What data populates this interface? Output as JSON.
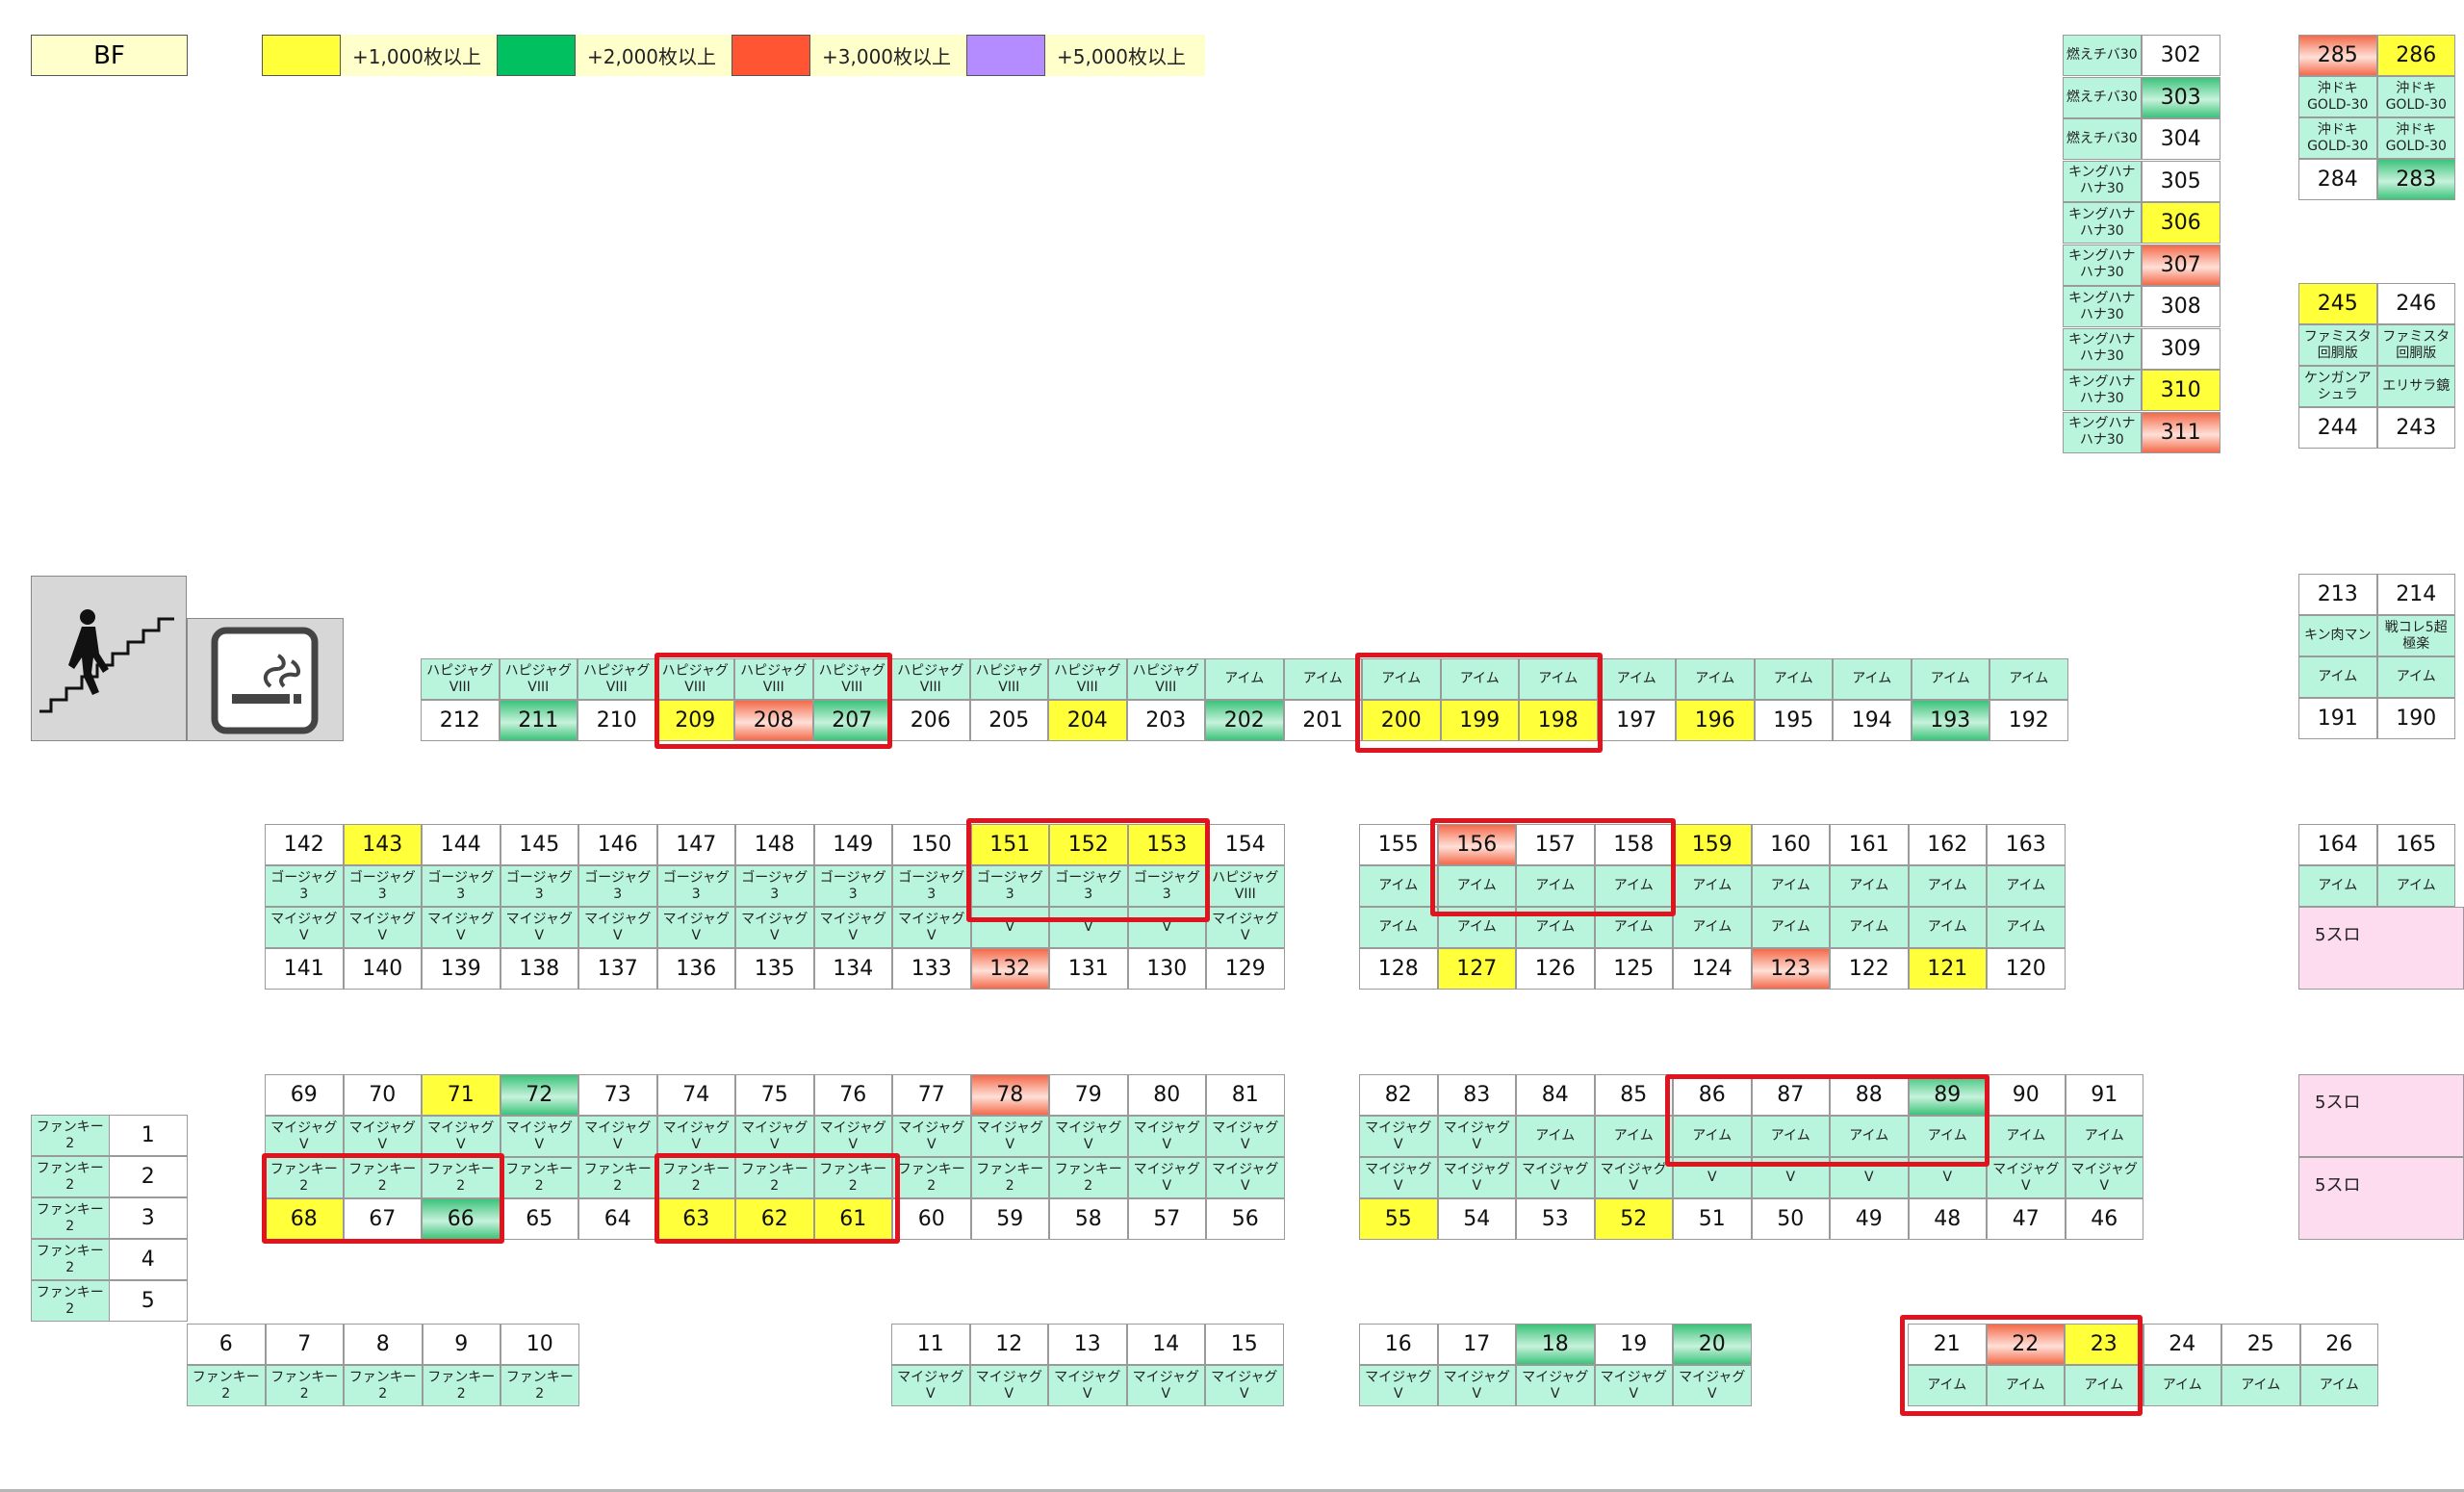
{
  "floor": "BF",
  "legend": [
    {
      "key": "y",
      "label": "+1,000枚以上",
      "color": "#ffff3a"
    },
    {
      "key": "g",
      "label": "+2,000枚以上",
      "color": "#00c060"
    },
    {
      "key": "r",
      "label": "+3,000枚以上",
      "color": "#ff5533"
    },
    {
      "key": "p",
      "label": "+5,000枚以上",
      "color": "#b48cff"
    }
  ],
  "icons": {
    "stairs": "stairs-icon",
    "smoking": "smoking-area-icon"
  },
  "pink_areas": [
    "5スロ",
    "5スロ",
    "5スロ"
  ],
  "units": [
    {
      "n": "302",
      "m": "燃えチバ30",
      "l": "n"
    },
    {
      "n": "303",
      "m": "燃えチバ30",
      "l": "g"
    },
    {
      "n": "304",
      "m": "燃えチバ30",
      "l": "n"
    },
    {
      "n": "305",
      "m": "キングハナ\nハナ30",
      "l": "n"
    },
    {
      "n": "306",
      "m": "キングハナ\nハナ30",
      "l": "y"
    },
    {
      "n": "307",
      "m": "キングハナ\nハナ30",
      "l": "r"
    },
    {
      "n": "308",
      "m": "キングハナ\nハナ30",
      "l": "n"
    },
    {
      "n": "309",
      "m": "キングハナ\nハナ30",
      "l": "n"
    },
    {
      "n": "310",
      "m": "キングハナ\nハナ30",
      "l": "y"
    },
    {
      "n": "311",
      "m": "キングハナ\nハナ30",
      "l": "r"
    },
    {
      "n": "285",
      "m": "沖ドキ\nGOLD-30",
      "l": "r"
    },
    {
      "n": "286",
      "m": "沖ドキ\nGOLD-30",
      "l": "y"
    },
    {
      "n": "284",
      "m": "沖ドキ\nGOLD-30",
      "l": "n"
    },
    {
      "n": "283",
      "m": "沖ドキ\nGOLD-30",
      "l": "g"
    },
    {
      "n": "245",
      "m": "ファミスタ\n回胴版",
      "l": "y"
    },
    {
      "n": "246",
      "m": "ファミスタ\n回胴版",
      "l": "n"
    },
    {
      "n": "244",
      "m": "ケンガンア\nシュラ",
      "l": "n"
    },
    {
      "n": "243",
      "m": "エリサラ鏡",
      "l": "n"
    },
    {
      "n": "213",
      "m": "キン肉マン",
      "l": "n"
    },
    {
      "n": "214",
      "m": "戦コレ5超\n極楽",
      "l": "n"
    },
    {
      "n": "191",
      "m": "アイム",
      "l": "n"
    },
    {
      "n": "190",
      "m": "アイム",
      "l": "n"
    },
    {
      "n": "212",
      "m": "ハピジャグ\nVIII",
      "l": "n"
    },
    {
      "n": "211",
      "m": "ハピジャグ\nVIII",
      "l": "g"
    },
    {
      "n": "210",
      "m": "ハピジャグ\nVIII",
      "l": "n"
    },
    {
      "n": "209",
      "m": "ハピジャグ\nVIII",
      "l": "y"
    },
    {
      "n": "208",
      "m": "ハピジャグ\nVIII",
      "l": "r"
    },
    {
      "n": "207",
      "m": "ハピジャグ\nVIII",
      "l": "g"
    },
    {
      "n": "206",
      "m": "ハピジャグ\nVIII",
      "l": "n"
    },
    {
      "n": "205",
      "m": "ハピジャグ\nVIII",
      "l": "n"
    },
    {
      "n": "204",
      "m": "ハピジャグ\nVIII",
      "l": "y"
    },
    {
      "n": "203",
      "m": "ハピジャグ\nVIII",
      "l": "n"
    },
    {
      "n": "202",
      "m": "アイム",
      "l": "g"
    },
    {
      "n": "201",
      "m": "アイム",
      "l": "n"
    },
    {
      "n": "200",
      "m": "アイム",
      "l": "y"
    },
    {
      "n": "199",
      "m": "アイム",
      "l": "y"
    },
    {
      "n": "198",
      "m": "アイム",
      "l": "y"
    },
    {
      "n": "197",
      "m": "アイム",
      "l": "n"
    },
    {
      "n": "196",
      "m": "アイム",
      "l": "y"
    },
    {
      "n": "195",
      "m": "アイム",
      "l": "n"
    },
    {
      "n": "194",
      "m": "アイム",
      "l": "n"
    },
    {
      "n": "193",
      "m": "アイム",
      "l": "g"
    },
    {
      "n": "192",
      "m": "アイム",
      "l": "n"
    },
    {
      "n": "142",
      "m": "ゴージャグ\n3",
      "l": "n"
    },
    {
      "n": "143",
      "m": "ゴージャグ\n3",
      "l": "y"
    },
    {
      "n": "144",
      "m": "ゴージャグ\n3",
      "l": "n"
    },
    {
      "n": "145",
      "m": "ゴージャグ\n3",
      "l": "n"
    },
    {
      "n": "146",
      "m": "ゴージャグ\n3",
      "l": "n"
    },
    {
      "n": "147",
      "m": "ゴージャグ\n3",
      "l": "n"
    },
    {
      "n": "148",
      "m": "ゴージャグ\n3",
      "l": "n"
    },
    {
      "n": "149",
      "m": "ゴージャグ\n3",
      "l": "n"
    },
    {
      "n": "150",
      "m": "ゴージャグ\n3",
      "l": "n"
    },
    {
      "n": "151",
      "m": "ゴージャグ\n3",
      "l": "y"
    },
    {
      "n": "152",
      "m": "ゴージャグ\n3",
      "l": "y"
    },
    {
      "n": "153",
      "m": "ゴージャグ\n3",
      "l": "y"
    },
    {
      "n": "154",
      "m": "ハピジャグ\nVIII",
      "l": "n"
    },
    {
      "n": "141",
      "m": "マイジャグ\nV",
      "l": "n"
    },
    {
      "n": "140",
      "m": "マイジャグ\nV",
      "l": "n"
    },
    {
      "n": "139",
      "m": "マイジャグ\nV",
      "l": "n"
    },
    {
      "n": "138",
      "m": "マイジャグ\nV",
      "l": "n"
    },
    {
      "n": "137",
      "m": "マイジャグ\nV",
      "l": "n"
    },
    {
      "n": "136",
      "m": "マイジャグ\nV",
      "l": "n"
    },
    {
      "n": "135",
      "m": "マイジャグ\nV",
      "l": "n"
    },
    {
      "n": "134",
      "m": "マイジャグ\nV",
      "l": "n"
    },
    {
      "n": "133",
      "m": "マイジャグ\nV",
      "l": "n"
    },
    {
      "n": "132",
      "m": "V",
      "l": "r"
    },
    {
      "n": "131",
      "m": "V",
      "l": "n"
    },
    {
      "n": "130",
      "m": "V",
      "l": "n"
    },
    {
      "n": "129",
      "m": "マイジャグ\nV",
      "l": "n"
    },
    {
      "n": "155",
      "m": "アイム",
      "l": "n"
    },
    {
      "n": "156",
      "m": "アイム",
      "l": "r"
    },
    {
      "n": "157",
      "m": "アイム",
      "l": "n"
    },
    {
      "n": "158",
      "m": "アイム",
      "l": "n"
    },
    {
      "n": "159",
      "m": "アイム",
      "l": "y"
    },
    {
      "n": "160",
      "m": "アイム",
      "l": "n"
    },
    {
      "n": "161",
      "m": "アイム",
      "l": "n"
    },
    {
      "n": "162",
      "m": "アイム",
      "l": "n"
    },
    {
      "n": "163",
      "m": "アイム",
      "l": "n"
    },
    {
      "n": "128",
      "m": "アイム",
      "l": "n"
    },
    {
      "n": "127",
      "m": "アイム",
      "l": "y"
    },
    {
      "n": "126",
      "m": "アイム",
      "l": "n"
    },
    {
      "n": "125",
      "m": "アイム",
      "l": "n"
    },
    {
      "n": "124",
      "m": "アイム",
      "l": "n"
    },
    {
      "n": "123",
      "m": "アイム",
      "l": "r"
    },
    {
      "n": "122",
      "m": "アイム",
      "l": "n"
    },
    {
      "n": "121",
      "m": "アイム",
      "l": "y"
    },
    {
      "n": "120",
      "m": "アイム",
      "l": "n"
    },
    {
      "n": "164",
      "m": "アイム",
      "l": "n"
    },
    {
      "n": "165",
      "m": "アイム",
      "l": "n"
    },
    {
      "n": "1",
      "m": "ファンキー\n2",
      "l": "n"
    },
    {
      "n": "2",
      "m": "ファンキー\n2",
      "l": "n"
    },
    {
      "n": "3",
      "m": "ファンキー\n2",
      "l": "n"
    },
    {
      "n": "4",
      "m": "ファンキー\n2",
      "l": "n"
    },
    {
      "n": "5",
      "m": "ファンキー\n2",
      "l": "n"
    },
    {
      "n": "69",
      "m": "マイジャグ\nV",
      "l": "n"
    },
    {
      "n": "70",
      "m": "マイジャグ\nV",
      "l": "n"
    },
    {
      "n": "71",
      "m": "マイジャグ\nV",
      "l": "y"
    },
    {
      "n": "72",
      "m": "マイジャグ\nV",
      "l": "g"
    },
    {
      "n": "73",
      "m": "マイジャグ\nV",
      "l": "n"
    },
    {
      "n": "74",
      "m": "マイジャグ\nV",
      "l": "n"
    },
    {
      "n": "75",
      "m": "マイジャグ\nV",
      "l": "n"
    },
    {
      "n": "76",
      "m": "マイジャグ\nV",
      "l": "n"
    },
    {
      "n": "77",
      "m": "マイジャグ\nV",
      "l": "n"
    },
    {
      "n": "78",
      "m": "マイジャグ\nV",
      "l": "r"
    },
    {
      "n": "79",
      "m": "マイジャグ\nV",
      "l": "n"
    },
    {
      "n": "80",
      "m": "マイジャグ\nV",
      "l": "n"
    },
    {
      "n": "81",
      "m": "マイジャグ\nV",
      "l": "n"
    },
    {
      "n": "68",
      "m": "ファンキー\n2",
      "l": "y"
    },
    {
      "n": "67",
      "m": "ファンキー\n2",
      "l": "n"
    },
    {
      "n": "66",
      "m": "ファンキー\n2",
      "l": "g"
    },
    {
      "n": "65",
      "m": "ファンキー\n2",
      "l": "n"
    },
    {
      "n": "64",
      "m": "ファンキー\n2",
      "l": "n"
    },
    {
      "n": "63",
      "m": "ファンキー\n2",
      "l": "y"
    },
    {
      "n": "62",
      "m": "ファンキー\n2",
      "l": "y"
    },
    {
      "n": "61",
      "m": "ファンキー\n2",
      "l": "y"
    },
    {
      "n": "60",
      "m": "ファンキー\n2",
      "l": "n"
    },
    {
      "n": "59",
      "m": "ファンキー\n2",
      "l": "n"
    },
    {
      "n": "58",
      "m": "ファンキー\n2",
      "l": "n"
    },
    {
      "n": "57",
      "m": "マイジャグ\nV",
      "l": "n"
    },
    {
      "n": "56",
      "m": "マイジャグ\nV",
      "l": "n"
    },
    {
      "n": "82",
      "m": "マイジャグ\nV",
      "l": "n"
    },
    {
      "n": "83",
      "m": "マイジャグ\nV",
      "l": "n"
    },
    {
      "n": "84",
      "m": "アイム",
      "l": "n"
    },
    {
      "n": "85",
      "m": "アイム",
      "l": "n"
    },
    {
      "n": "86",
      "m": "アイム",
      "l": "n"
    },
    {
      "n": "87",
      "m": "アイム",
      "l": "n"
    },
    {
      "n": "88",
      "m": "アイム",
      "l": "n"
    },
    {
      "n": "89",
      "m": "アイム",
      "l": "g"
    },
    {
      "n": "90",
      "m": "アイム",
      "l": "n"
    },
    {
      "n": "91",
      "m": "アイム",
      "l": "n"
    },
    {
      "n": "55",
      "m": "マイジャグ\nV",
      "l": "y"
    },
    {
      "n": "54",
      "m": "マイジャグ\nV",
      "l": "n"
    },
    {
      "n": "53",
      "m": "マイジャグ\nV",
      "l": "n"
    },
    {
      "n": "52",
      "m": "マイジャグ\nV",
      "l": "y"
    },
    {
      "n": "51",
      "m": "V",
      "l": "n"
    },
    {
      "n": "50",
      "m": "V",
      "l": "n"
    },
    {
      "n": "49",
      "m": "V",
      "l": "n"
    },
    {
      "n": "48",
      "m": "V",
      "l": "n"
    },
    {
      "n": "47",
      "m": "マイジャグ\nV",
      "l": "n"
    },
    {
      "n": "46",
      "m": "マイジャグ\nV",
      "l": "n"
    },
    {
      "n": "6",
      "m": "ファンキー\n2",
      "l": "n"
    },
    {
      "n": "7",
      "m": "ファンキー\n2",
      "l": "n"
    },
    {
      "n": "8",
      "m": "ファンキー\n2",
      "l": "n"
    },
    {
      "n": "9",
      "m": "ファンキー\n2",
      "l": "n"
    },
    {
      "n": "10",
      "m": "ファンキー\n2",
      "l": "n"
    },
    {
      "n": "11",
      "m": "マイジャグ\nV",
      "l": "n"
    },
    {
      "n": "12",
      "m": "マイジャグ\nV",
      "l": "n"
    },
    {
      "n": "13",
      "m": "マイジャグ\nV",
      "l": "n"
    },
    {
      "n": "14",
      "m": "マイジャグ\nV",
      "l": "n"
    },
    {
      "n": "15",
      "m": "マイジャグ\nV",
      "l": "n"
    },
    {
      "n": "16",
      "m": "マイジャグ\nV",
      "l": "n"
    },
    {
      "n": "17",
      "m": "マイジャグ\nV",
      "l": "n"
    },
    {
      "n": "18",
      "m": "マイジャグ\nV",
      "l": "g"
    },
    {
      "n": "19",
      "m": "マイジャグ\nV",
      "l": "n"
    },
    {
      "n": "20",
      "m": "マイジャグ\nV",
      "l": "g"
    },
    {
      "n": "21",
      "m": "アイム",
      "l": "n"
    },
    {
      "n": "22",
      "m": "アイム",
      "l": "r"
    },
    {
      "n": "23",
      "m": "アイム",
      "l": "y"
    },
    {
      "n": "24",
      "m": "アイム",
      "l": "n"
    },
    {
      "n": "25",
      "m": "アイム",
      "l": "n"
    },
    {
      "n": "26",
      "m": "アイム",
      "l": "n"
    }
  ]
}
